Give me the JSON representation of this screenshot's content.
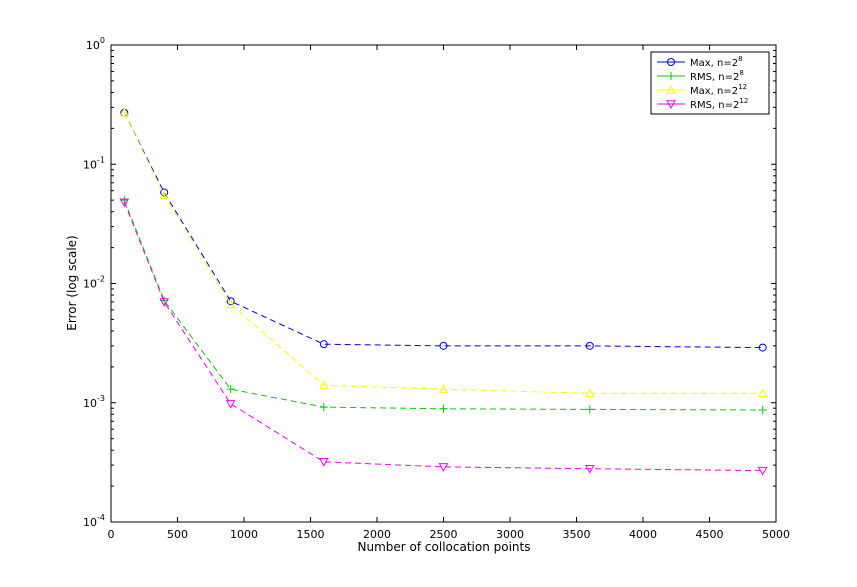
{
  "chart_data": {
    "type": "line",
    "title": "",
    "xlabel": "Number of collocation points",
    "ylabel": "Error (log scale)",
    "xlim": [
      0,
      5000
    ],
    "ylim": [
      0.0001,
      1
    ],
    "yscale": "log",
    "grid": false,
    "legend_position": "top-right",
    "x_ticks": [
      0,
      500,
      1000,
      1500,
      2000,
      2500,
      3000,
      3500,
      4000,
      4500,
      5000
    ],
    "y_tick_exponents": [
      "-4",
      "-3",
      "-2",
      "-1",
      "0"
    ],
    "y_tick_base": "10",
    "x": [
      100,
      400,
      900,
      1600,
      2500,
      3600,
      4900
    ],
    "series": [
      {
        "name": "Max, n=2",
        "exponent": "8",
        "color": "#0000ff",
        "marker": "circle",
        "values": [
          0.27,
          0.058,
          0.0071,
          0.0031,
          0.003,
          0.003,
          0.0029
        ]
      },
      {
        "name": "RMS, n=2",
        "exponent": "8",
        "color": "#00cc00",
        "marker": "plus",
        "values": [
          0.05,
          0.0072,
          0.0013,
          0.00092,
          0.00089,
          0.00088,
          0.00087
        ]
      },
      {
        "name": "Max, n=2",
        "exponent": "12",
        "color": "#ffff00",
        "marker": "triangle-up",
        "values": [
          0.27,
          0.055,
          0.0067,
          0.0014,
          0.0013,
          0.0012,
          0.0012
        ]
      },
      {
        "name": "RMS, n=2",
        "exponent": "12",
        "color": "#ff00ff",
        "marker": "triangle-down",
        "values": [
          0.048,
          0.007,
          0.00098,
          0.00032,
          0.00029,
          0.00028,
          0.00027
        ]
      }
    ]
  }
}
